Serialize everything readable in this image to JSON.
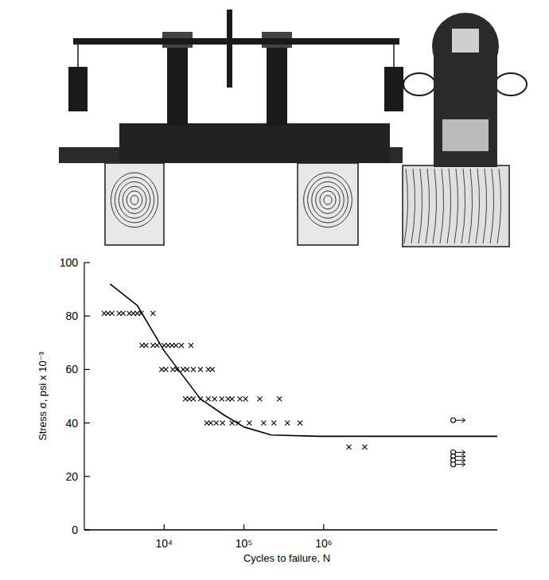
{
  "chart_data": {
    "type": "scatter",
    "y_label": "Stress σ, psi x 10⁻³",
    "x_label": "Cycles to failure, N",
    "log": "x",
    "grid": false,
    "color": "#000000",
    "xlim": [
      1000,
      150000000
    ],
    "xticks": [
      {
        "value": 10000,
        "label": "10⁴"
      },
      {
        "value": 100000,
        "label": "10⁵"
      },
      {
        "value": 1000000,
        "label": "10⁶"
      }
    ],
    "ylim": [
      0,
      100
    ],
    "yticks": [
      0,
      20,
      40,
      60,
      80,
      100
    ],
    "series": [
      {
        "type": "scatter",
        "marker": "x",
        "color": "#000000",
        "x": [
          1770,
          1980,
          2220,
          2730,
          3060,
          3660,
          4110,
          4600,
          5160,
          7260,
          5290,
          5920,
          7260,
          8150,
          10000,
          11200,
          12600,
          14100,
          16500,
          21700,
          9340,
          10500,
          12900,
          14400,
          17300,
          19400,
          23200,
          28500,
          35800,
          40200,
          18500,
          20700,
          23200,
          28500,
          35800,
          43000,
          52800,
          63400,
          71000,
          89200,
          105000,
          158000,
          279000,
          34300,
          38400,
          45000,
          54000,
          71000,
          85300,
          117000,
          177000,
          238000,
          351000,
          505000,
          2070000,
          3270000
        ],
        "values": [
          81,
          81,
          81,
          81,
          81,
          81,
          81,
          81,
          81,
          81,
          69,
          69,
          69,
          69,
          69,
          69,
          69,
          69,
          69,
          69,
          60,
          60,
          60,
          60,
          60,
          60,
          60,
          60,
          60,
          60,
          49,
          49,
          49,
          49,
          49,
          49,
          49,
          49,
          49,
          49,
          49,
          49,
          49,
          40,
          40,
          40,
          40,
          40,
          40,
          40,
          40,
          40,
          40,
          40,
          31,
          31
        ]
      },
      {
        "type": "line",
        "line_style": "solid",
        "color": "#000000",
        "x": [
          2100,
          4600,
          10000,
          28500,
          56000,
          100000,
          220000,
          870000,
          150000000
        ],
        "values": [
          92,
          84,
          67,
          49,
          43,
          38.5,
          35.5,
          35,
          35
        ]
      },
      {
        "type": "scatter",
        "marker": "circle",
        "color": "#000000",
        "x": [
          42000000,
          42000000,
          42000000,
          42000000,
          42000000
        ],
        "values": [
          41,
          29,
          27.5,
          26,
          24.5
        ]
      }
    ]
  }
}
